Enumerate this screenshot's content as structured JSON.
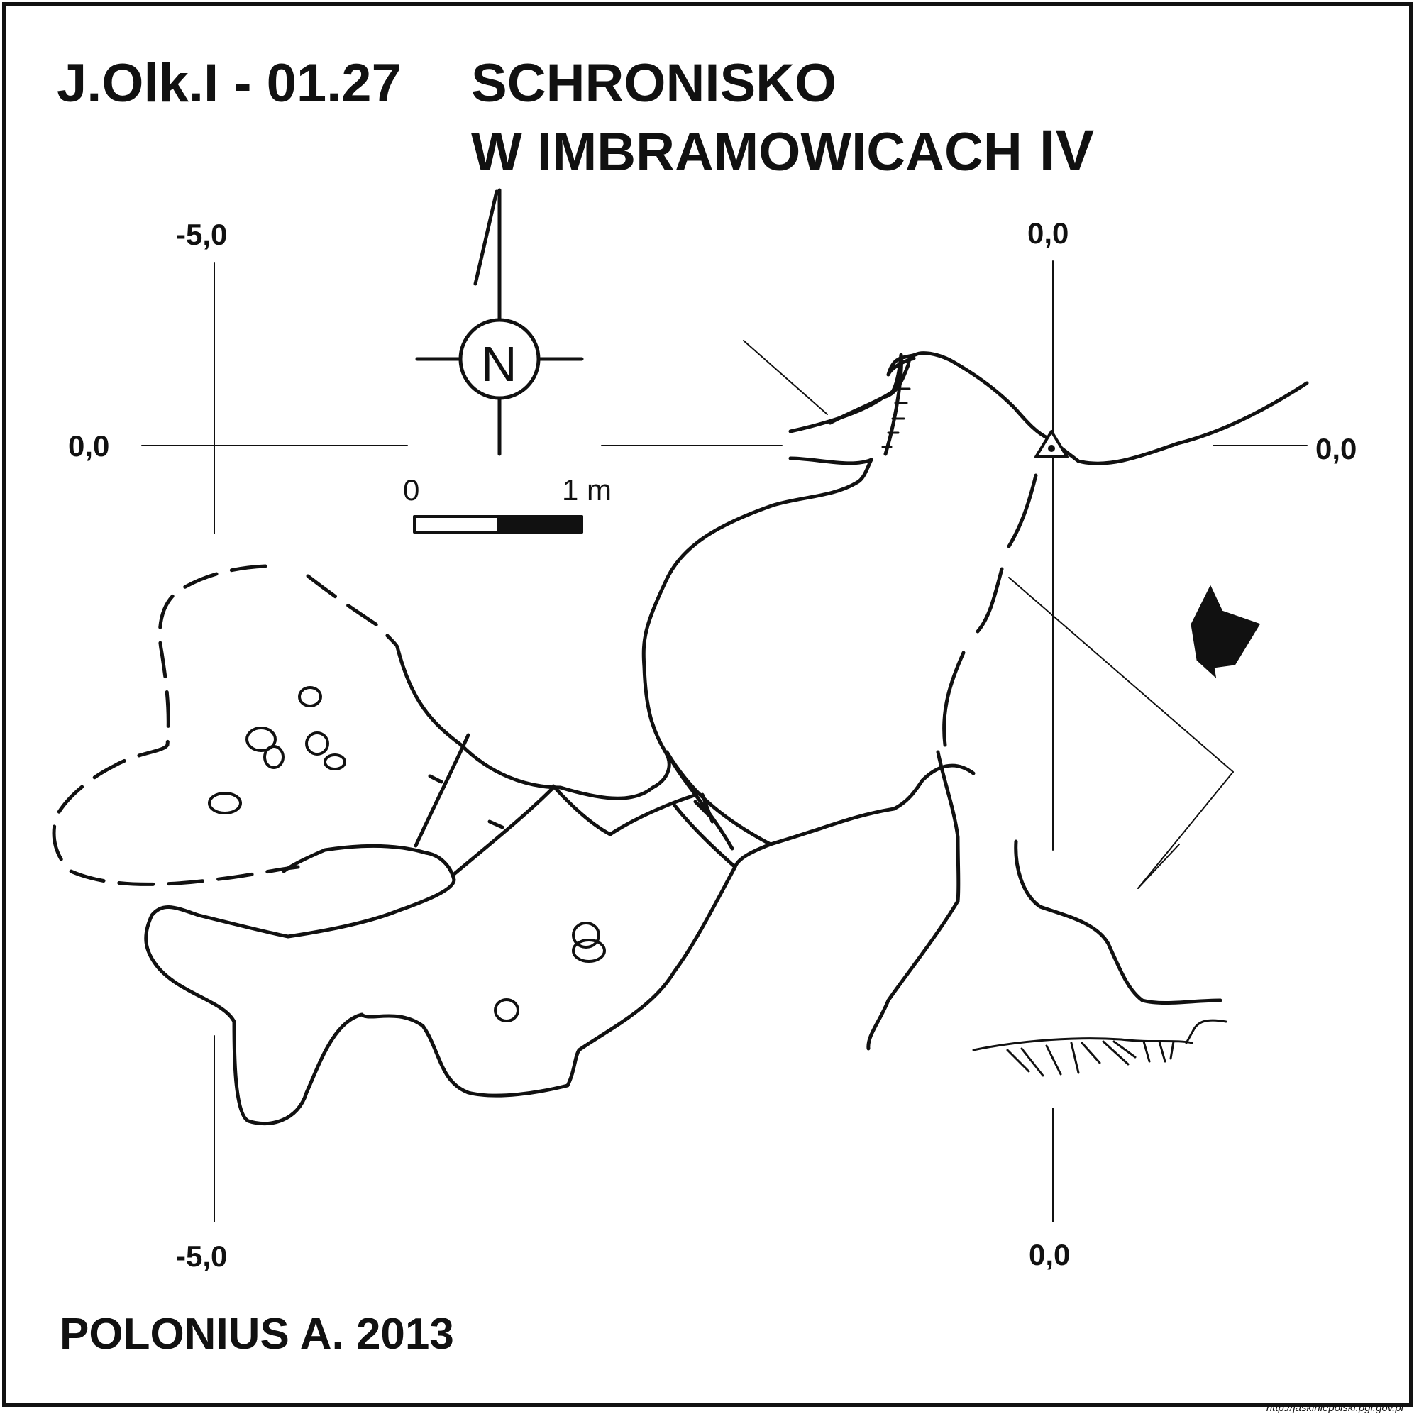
{
  "title": {
    "code": "J.Olk.I - 01.27",
    "name_line1": "SCHRONISKO",
    "name_line2": "W IMBRAMOWICACH",
    "name_suffix": "IV"
  },
  "grid_labels": {
    "top_left": "-5,0",
    "top_right": "0,0",
    "left": "0,0",
    "right": "0,0",
    "bottom_left": "-5,0",
    "bottom_right": "0,0"
  },
  "compass": {
    "letter": "N"
  },
  "scale_bar": {
    "start_label": "0",
    "end_label": "1 m"
  },
  "author": "POLONIUS A. 2013",
  "source_url": "http://jaskiniepolski.pgi.gov.pl",
  "colors": {
    "ink": "#111111",
    "background": "#ffffff"
  }
}
